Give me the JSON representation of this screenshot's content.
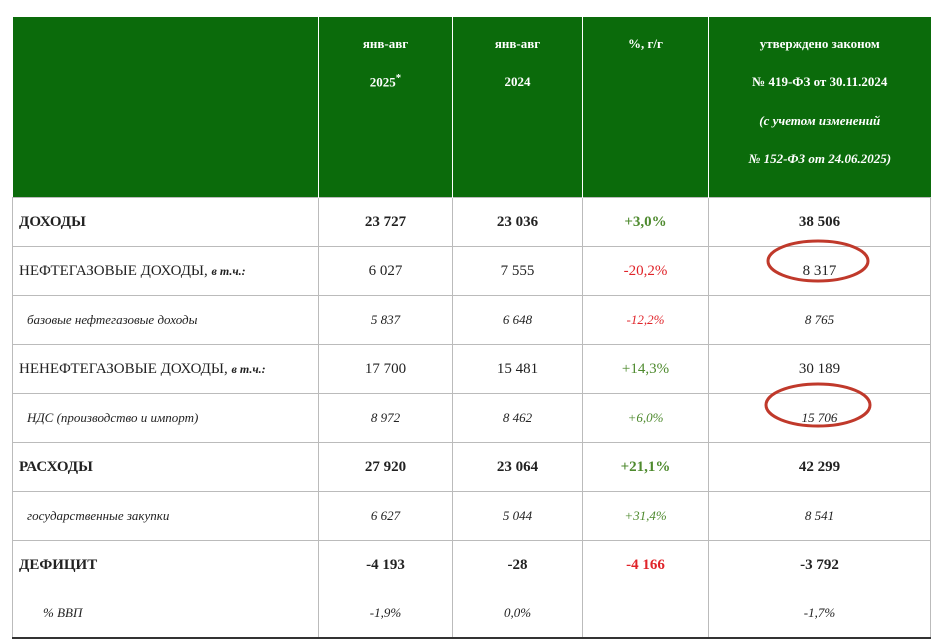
{
  "header": {
    "col1": {
      "line1": "янв-авг",
      "line2": "2025",
      "mark": "*"
    },
    "col2": {
      "line1": "янв-авг",
      "line2": "2024"
    },
    "col3": {
      "line1": "%, г/г"
    },
    "col4": {
      "line1": "утверждено законом",
      "line2": "№ 419-ФЗ от 30.11.2024",
      "line3": "(с учетом изменений",
      "line4": "№ 152-ФЗ от 24.06.2025)"
    }
  },
  "table": {
    "rows": [
      {
        "label": "ДОХОДЫ",
        "cells": [
          "23 727",
          "23 036",
          "+3,0%",
          "38 506"
        ]
      },
      {
        "label": "НЕФТЕГАЗОВЫЕ ДОХОДЫ,",
        "note": "в т.ч.:",
        "cells": [
          "6 027",
          "7 555",
          "-20,2%",
          "8 317"
        ]
      },
      {
        "label": "базовые нефтегазовые доходы",
        "cells": [
          "5 837",
          "6 648",
          "-12,2%",
          "8 765"
        ]
      },
      {
        "label": "НЕНЕФТЕГАЗОВЫЕ ДОХОДЫ,",
        "note": "в т.ч.:",
        "cells": [
          "17 700",
          "15 481",
          "+14,3%",
          "30 189"
        ]
      },
      {
        "label": "НДС (производство и импорт)",
        "cells": [
          "8 972",
          "8 462",
          "+6,0%",
          "15 706"
        ]
      },
      {
        "label": "РАСХОДЫ",
        "cells": [
          "27 920",
          "23 064",
          "+21,1%",
          "42 299"
        ]
      },
      {
        "label": "государственные закупки",
        "cells": [
          "6 627",
          "5 044",
          "+31,4%",
          "8 541"
        ]
      },
      {
        "label": "ДЕФИЦИТ",
        "cells": [
          "-4 193",
          "-28",
          "-4 166",
          "-3 792"
        ]
      },
      {
        "label": "% ВВП",
        "cells": [
          "-1,9%",
          "0,0%",
          null,
          "-1,7%"
        ]
      }
    ]
  }
}
